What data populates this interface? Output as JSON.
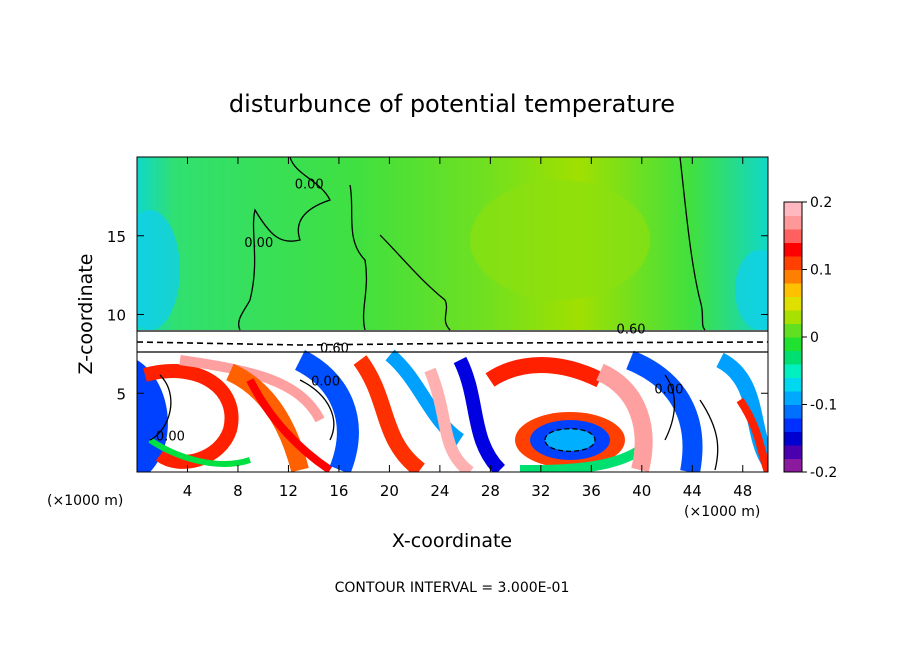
{
  "chart_data": {
    "type": "heatmap",
    "title": "disturbunce of potential temperature",
    "xlabel": "X-coordinate",
    "ylabel": "Z-coordinate",
    "x_unit": "(×1000 m)",
    "x_unit_right": "(×1000 m)",
    "xlim": [
      0,
      50
    ],
    "ylim": [
      0,
      20
    ],
    "x_ticks": [
      4,
      8,
      12,
      16,
      20,
      24,
      28,
      32,
      36,
      40,
      44,
      48
    ],
    "y_ticks": [
      5,
      10,
      15
    ],
    "colorbar": {
      "range": [
        -0.2,
        0.2
      ],
      "ticks": [
        {
          "value": 0.2,
          "label": "0.2"
        },
        {
          "value": 0.1,
          "label": "0.1"
        },
        {
          "value": 0,
          "label": "0"
        },
        {
          "value": -0.1,
          "label": "-0.1"
        },
        {
          "value": -0.2,
          "label": "-0.2"
        }
      ],
      "colors": [
        "#8b1a9e",
        "#4b00b0",
        "#0000d0",
        "#0030ff",
        "#0070ff",
        "#00a8ff",
        "#00d8f0",
        "#00f0c0",
        "#00e070",
        "#20e030",
        "#60e020",
        "#a8e000",
        "#e0e000",
        "#ffc000",
        "#ff8000",
        "#ff4000",
        "#ff0000",
        "#ff6060",
        "#ff9898",
        "#ffb8c0"
      ]
    },
    "contour_labels": [
      {
        "text": "0.00",
        "x": 12.5,
        "z": 18.0
      },
      {
        "text": "0.00",
        "x": 8.5,
        "z": 14.3
      },
      {
        "text": "0.60",
        "x": 38.0,
        "z": 8.8
      },
      {
        "text": "0.60",
        "x": 14.5,
        "z": 7.6
      },
      {
        "text": "0.00",
        "x": 13.8,
        "z": 5.5
      },
      {
        "text": "0.00",
        "x": 1.5,
        "z": 2.0
      },
      {
        "text": "0.00",
        "x": 41.0,
        "z": 5.0
      }
    ],
    "footnote": "CONTOUR INTERVAL = 3.000E-01"
  }
}
